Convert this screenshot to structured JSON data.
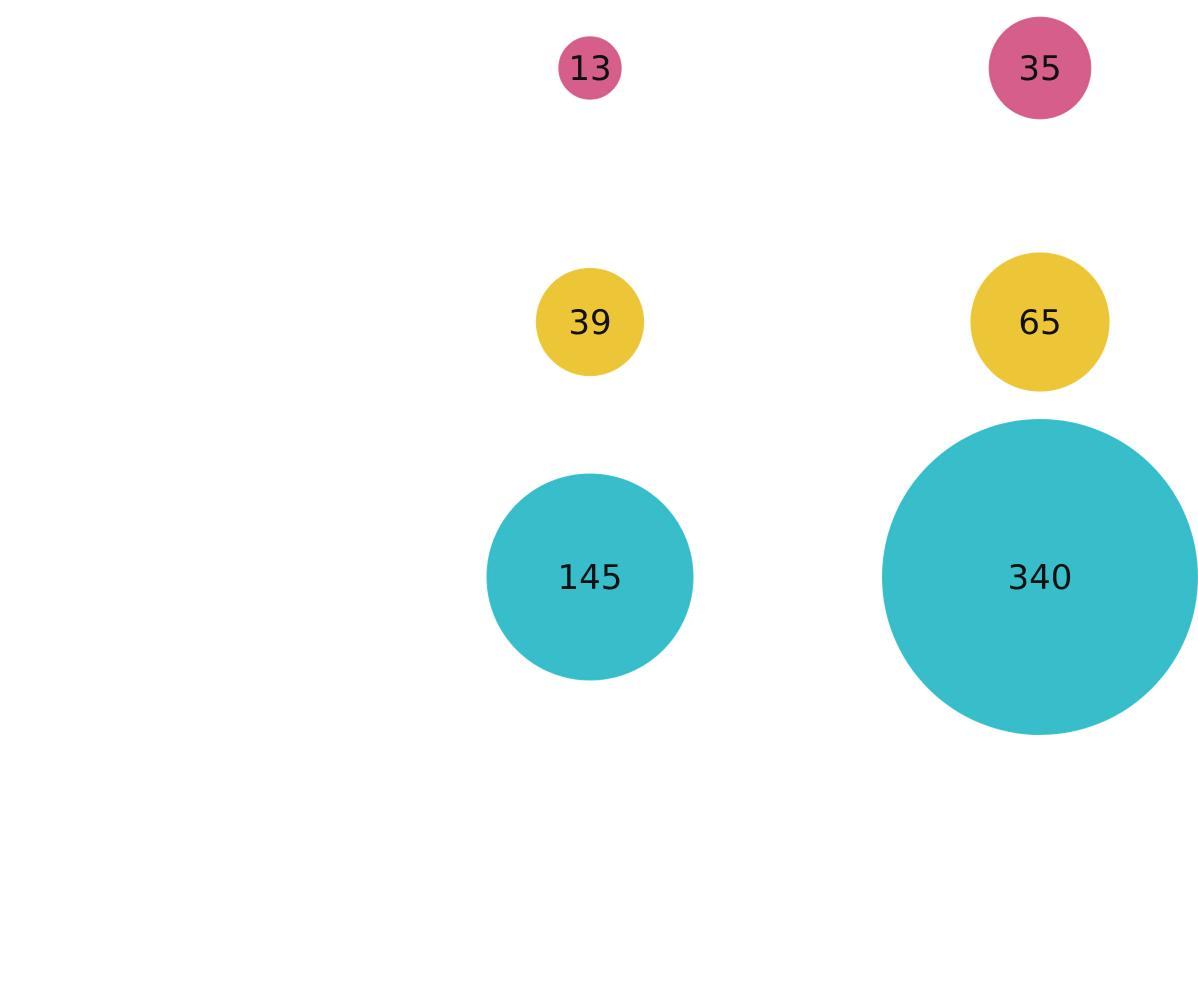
{
  "chart_data": {
    "type": "scatter",
    "title": "",
    "xlabel": "",
    "ylabel": "",
    "columns": [
      {
        "bubbles": [
          {
            "value": 13,
            "label": "13",
            "color": "#d45a86"
          },
          {
            "value": 39,
            "label": "39",
            "color": "#ebc431"
          },
          {
            "value": 145,
            "label": "145",
            "color": "#31bcc8"
          }
        ]
      },
      {
        "bubbles": [
          {
            "value": 35,
            "label": "35",
            "color": "#d45a86"
          },
          {
            "value": 65,
            "label": "65",
            "color": "#ebc431"
          },
          {
            "value": 340,
            "label": "340",
            "color": "#31bcc8"
          }
        ]
      }
    ],
    "grid": false,
    "legend": "none",
    "size_encoding": "area proportional to value"
  }
}
